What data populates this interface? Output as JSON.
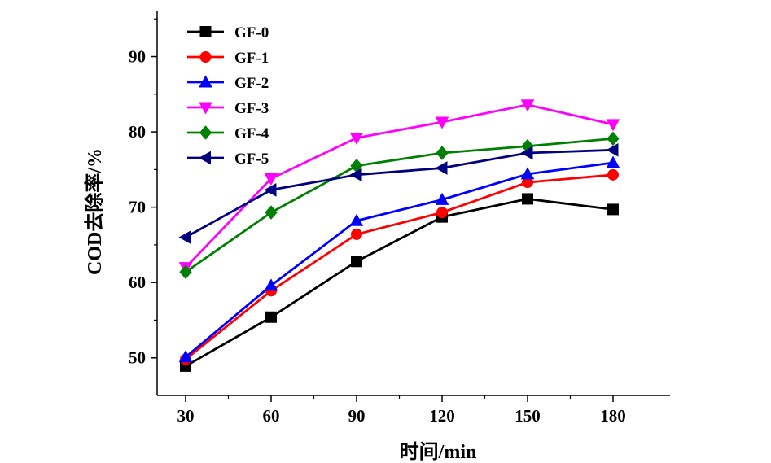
{
  "chart_data": {
    "type": "line",
    "xlabel": "时间/min",
    "ylabel": "COD去除率/%",
    "x": [
      30,
      60,
      90,
      120,
      150,
      180
    ],
    "xticks": [
      "30",
      "60",
      "90",
      "120",
      "150",
      "180"
    ],
    "xlim": [
      20,
      200
    ],
    "yticks": [
      "50",
      "60",
      "70",
      "80",
      "90"
    ],
    "ylim": [
      45,
      96
    ],
    "legend_position": "top-left",
    "grid": false,
    "series": [
      {
        "name": "GF-0",
        "marker": "square",
        "color": "#000000",
        "values": [
          48.9,
          55.4,
          62.8,
          68.7,
          71.1,
          69.7
        ]
      },
      {
        "name": "GF-1",
        "marker": "circle",
        "color": "#ff0000",
        "values": [
          49.8,
          58.9,
          66.4,
          69.3,
          73.3,
          74.3
        ]
      },
      {
        "name": "GF-2",
        "marker": "triangle-up",
        "color": "#0000ff",
        "values": [
          50.1,
          59.6,
          68.2,
          71.0,
          74.4,
          75.9
        ]
      },
      {
        "name": "GF-3",
        "marker": "triangle-down",
        "color": "#ff00ff",
        "values": [
          62.0,
          73.8,
          79.2,
          81.3,
          83.6,
          81.0
        ]
      },
      {
        "name": "GF-4",
        "marker": "diamond",
        "color": "#008000",
        "values": [
          61.4,
          69.3,
          75.5,
          77.2,
          78.1,
          79.1
        ]
      },
      {
        "name": "GF-5",
        "marker": "triangle-left",
        "color": "#000080",
        "values": [
          66.0,
          72.3,
          74.3,
          75.2,
          77.2,
          77.6
        ]
      }
    ]
  }
}
